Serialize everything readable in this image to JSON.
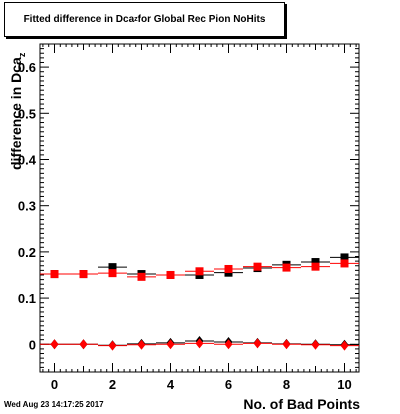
{
  "title": {
    "prefix": "Fitted difference in Dca",
    "subscript": "z",
    "suffix": " for Global Rec Pion NoHits"
  },
  "footer": {
    "date": "Wed Aug 23 14:17:25 2017"
  },
  "chart_data": {
    "type": "scatter",
    "xlabel": "No. of Bad Points",
    "ylabel": {
      "main": "difference in Dca",
      "subscript": "z"
    },
    "xlim": [
      -0.5,
      10.5
    ],
    "ylim": [
      -0.06,
      0.65
    ],
    "xticks": [
      0,
      2,
      4,
      6,
      8,
      10
    ],
    "yticks": [
      0,
      0.1,
      0.2,
      0.3,
      0.4,
      0.5,
      0.6
    ],
    "xtick_labels": [
      "0",
      "2",
      "4",
      "6",
      "8",
      "10"
    ],
    "ytick_labels": [
      "0",
      "0.1",
      "0.2",
      "0.3",
      "0.4",
      "0.5",
      "0.6"
    ],
    "grid": false,
    "series": [
      {
        "marker": "square",
        "color": "#000000",
        "x": [
          0,
          1,
          2,
          3,
          4,
          5,
          6,
          7,
          8,
          9,
          10
        ],
        "y": [
          0.152,
          0.152,
          0.167,
          0.152,
          0.15,
          0.15,
          0.155,
          0.165,
          0.172,
          0.178,
          0.188
        ]
      },
      {
        "marker": "square",
        "color": "#ff0000",
        "x": [
          0,
          1,
          2,
          3,
          4,
          5,
          6,
          7,
          8,
          9,
          10
        ],
        "y": [
          0.152,
          0.152,
          0.154,
          0.146,
          0.15,
          0.158,
          0.163,
          0.168,
          0.166,
          0.168,
          0.175
        ]
      },
      {
        "marker": "diamond",
        "color": "#000000",
        "x": [
          0,
          1,
          2,
          3,
          4,
          5,
          6,
          7,
          8,
          9,
          10
        ],
        "y": [
          0.0,
          0.0,
          -0.002,
          0.001,
          0.003,
          0.007,
          0.005,
          0.003,
          0.001,
          0.0,
          -0.001
        ]
      },
      {
        "marker": "diamond",
        "color": "#ff0000",
        "x": [
          0,
          1,
          2,
          3,
          4,
          5,
          6,
          7,
          8,
          9,
          10
        ],
        "y": [
          0.0,
          0.0,
          -0.003,
          -0.001,
          0.0,
          0.002,
          0.0,
          0.002,
          0.0,
          -0.001,
          -0.003
        ]
      }
    ]
  }
}
